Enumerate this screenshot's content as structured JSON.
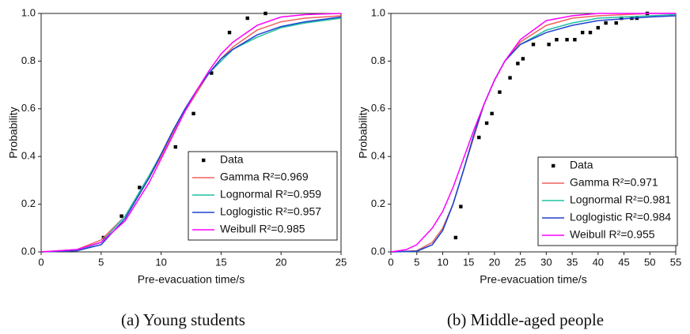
{
  "chart_data": [
    {
      "type": "line",
      "caption": "(a) Young students",
      "x_label": "Pre-evacuation time/s",
      "y_label": "Probability",
      "xlim": [
        0,
        25
      ],
      "xticks": [
        0,
        5,
        10,
        15,
        20,
        25
      ],
      "ylim": [
        0,
        1
      ],
      "yticks": [
        {
          "value": 0,
          "label": "0.0"
        },
        0.2,
        0.4,
        0.6,
        0.8,
        {
          "value": 1,
          "label": "1.0"
        }
      ],
      "series": [
        {
          "name": "Data",
          "color": "#000000",
          "mode": "markers",
          "x": [
            5.2,
            6.7,
            8.2,
            11.2,
            12.7,
            14.2,
            15.7,
            17.2,
            18.7
          ],
          "values": [
            0.06,
            0.15,
            0.27,
            0.44,
            0.58,
            0.75,
            0.92,
            0.98,
            1.0
          ]
        },
        {
          "name": "Gamma R²=0.969",
          "color": "#f06060",
          "mode": "line",
          "x": [
            0,
            3,
            5,
            7,
            9,
            10,
            11,
            12,
            13,
            14,
            15,
            16,
            18,
            20,
            22,
            25
          ],
          "values": [
            0,
            0.01,
            0.05,
            0.15,
            0.31,
            0.4,
            0.5,
            0.59,
            0.67,
            0.75,
            0.81,
            0.86,
            0.93,
            0.965,
            0.98,
            0.99
          ]
        },
        {
          "name": "Lognormal R²=0.959",
          "color": "#20c0a0",
          "mode": "line",
          "x": [
            0,
            3,
            5,
            7,
            9,
            10,
            11,
            12,
            13,
            14,
            15,
            16,
            18,
            20,
            22,
            25
          ],
          "values": [
            0,
            0.005,
            0.04,
            0.15,
            0.32,
            0.41,
            0.51,
            0.6,
            0.68,
            0.75,
            0.8,
            0.85,
            0.9,
            0.94,
            0.96,
            0.98
          ]
        },
        {
          "name": "Loglogistic R²=0.957",
          "color": "#2040d0",
          "mode": "line",
          "x": [
            0,
            3,
            5,
            7,
            9,
            10,
            11,
            12,
            13,
            14,
            15,
            16,
            18,
            20,
            22,
            25
          ],
          "values": [
            0,
            0.005,
            0.03,
            0.14,
            0.31,
            0.41,
            0.51,
            0.6,
            0.68,
            0.75,
            0.81,
            0.85,
            0.91,
            0.945,
            0.965,
            0.985
          ]
        },
        {
          "name": "Weibull R²=0.985",
          "color": "#ff00ff",
          "mode": "line",
          "x": [
            0,
            3,
            5,
            7,
            9,
            10,
            11,
            12,
            13,
            14,
            15,
            16,
            18,
            20,
            22,
            25
          ],
          "values": [
            0,
            0.01,
            0.04,
            0.13,
            0.29,
            0.39,
            0.49,
            0.59,
            0.68,
            0.76,
            0.83,
            0.88,
            0.95,
            0.985,
            0.995,
            1.0
          ]
        }
      ]
    },
    {
      "type": "line",
      "caption": "(b) Middle-aged people",
      "x_label": "Pre-evacuation time/s",
      "y_label": "Probability",
      "xlim": [
        0,
        55
      ],
      "xticks": [
        0,
        5,
        10,
        15,
        20,
        25,
        30,
        35,
        40,
        45,
        50,
        55
      ],
      "ylim": [
        0,
        1
      ],
      "yticks": [
        {
          "value": 0,
          "label": "0.0"
        },
        0.2,
        0.4,
        0.6,
        0.8,
        {
          "value": 1,
          "label": "1.0"
        }
      ],
      "series": [
        {
          "name": "Data",
          "color": "#000000",
          "mode": "markers",
          "x": [
            12.5,
            13.5,
            17,
            18.5,
            19.5,
            21,
            23,
            24.5,
            25.5,
            27.5,
            30.5,
            32,
            34,
            35.5,
            37,
            38.5,
            40,
            41.5,
            43.5,
            44.5,
            46.5,
            47.5,
            49.5
          ],
          "values": [
            0.06,
            0.19,
            0.48,
            0.54,
            0.58,
            0.67,
            0.73,
            0.79,
            0.81,
            0.87,
            0.87,
            0.89,
            0.89,
            0.89,
            0.92,
            0.92,
            0.94,
            0.96,
            0.96,
            0.98,
            0.98,
            0.98,
            1.0
          ]
        },
        {
          "name": "Gamma R²=0.971",
          "color": "#f06060",
          "mode": "line",
          "x": [
            0,
            5,
            8,
            10,
            12,
            14,
            16,
            18,
            20,
            22,
            25,
            30,
            35,
            40,
            50,
            55
          ],
          "values": [
            0,
            0.005,
            0.04,
            0.1,
            0.2,
            0.34,
            0.48,
            0.62,
            0.72,
            0.8,
            0.88,
            0.95,
            0.98,
            0.99,
            1.0,
            1.0
          ]
        },
        {
          "name": "Lognormal R²=0.981",
          "color": "#20c0a0",
          "mode": "line",
          "x": [
            0,
            5,
            8,
            10,
            12,
            14,
            16,
            18,
            20,
            22,
            25,
            30,
            35,
            40,
            50,
            55
          ],
          "values": [
            0,
            0.002,
            0.03,
            0.09,
            0.2,
            0.34,
            0.49,
            0.62,
            0.72,
            0.8,
            0.87,
            0.93,
            0.96,
            0.98,
            0.99,
            0.995
          ]
        },
        {
          "name": "Loglogistic R²=0.984",
          "color": "#2040d0",
          "mode": "line",
          "x": [
            0,
            5,
            8,
            10,
            12,
            14,
            16,
            18,
            20,
            22,
            25,
            30,
            35,
            40,
            50,
            55
          ],
          "values": [
            0,
            0.003,
            0.03,
            0.09,
            0.2,
            0.34,
            0.49,
            0.62,
            0.72,
            0.8,
            0.87,
            0.92,
            0.95,
            0.97,
            0.985,
            0.99
          ]
        },
        {
          "name": "Weibull R²=0.955",
          "color": "#ff00ff",
          "mode": "line",
          "x": [
            0,
            3,
            5,
            8,
            10,
            12,
            14,
            16,
            18,
            20,
            22,
            25,
            30,
            35,
            40,
            55
          ],
          "values": [
            0,
            0.01,
            0.03,
            0.1,
            0.17,
            0.27,
            0.39,
            0.51,
            0.62,
            0.72,
            0.8,
            0.89,
            0.97,
            0.99,
            1.0,
            1.0
          ]
        }
      ]
    }
  ]
}
